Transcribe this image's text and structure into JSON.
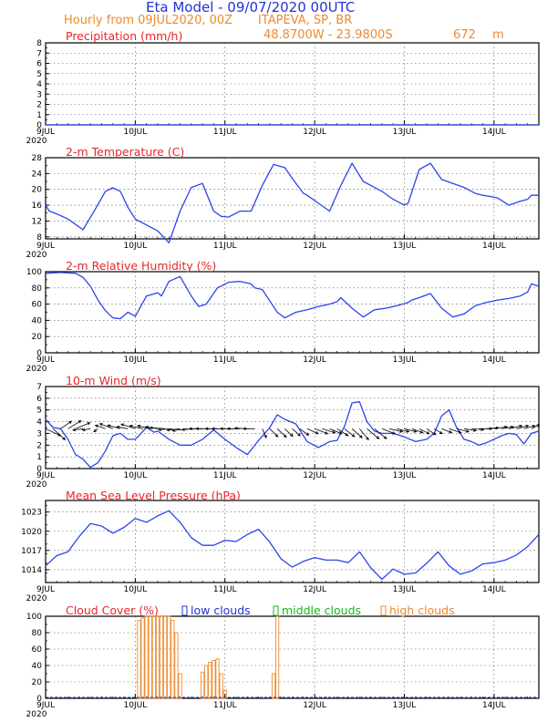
{
  "header": {
    "title": "Eta Model - 09/07/2020 00UTC",
    "subtitle": "Hourly from 09JUL2020, 00Z",
    "station": "ITAPEVA, SP, BR",
    "coords": "48.8700W - 23.9800S",
    "elevation": "672",
    "elevation_unit": "m"
  },
  "x_axis": {
    "days": [
      "9JUL",
      "10JUL",
      "11JUL",
      "12JUL",
      "13JUL",
      "14JUL"
    ],
    "year": "2020",
    "range_hours": [
      0,
      132
    ]
  },
  "colors": {
    "line": "#2a44ee",
    "title": "#e8262a",
    "header_blue": "#2233d8",
    "header_orange": "#ee8a2e",
    "high_clouds": "#ee8a2e",
    "middle_clouds": "#19b619",
    "low_clouds": "#2233d8"
  },
  "chart_data": [
    {
      "id": "precip",
      "type": "line",
      "title": "Precipitation (mm/h)",
      "ylim": [
        0,
        8
      ],
      "yticks": [
        0,
        1,
        2,
        3,
        4,
        5,
        6,
        7,
        8
      ],
      "series": [
        {
          "name": "precipitation",
          "x": [
            0,
            132
          ],
          "values": [
            0,
            0
          ]
        }
      ]
    },
    {
      "id": "temp",
      "type": "line",
      "title": "2-m Temperature (C)",
      "ylim": [
        7.5,
        28
      ],
      "yticks": [
        8,
        12,
        16,
        20,
        24,
        28
      ],
      "series": [
        {
          "name": "temperature",
          "x": [
            0,
            1,
            3,
            6,
            10,
            13,
            16,
            18,
            20,
            22,
            24,
            27,
            30,
            33,
            36,
            39,
            42,
            45,
            47,
            49,
            52,
            55,
            58,
            61,
            64,
            67,
            69,
            70,
            73,
            76,
            79,
            82,
            85,
            88,
            90,
            93,
            96,
            97,
            100,
            103,
            106,
            109,
            112,
            114,
            115,
            117,
            119,
            121,
            124,
            127,
            129,
            130,
            132
          ],
          "values": [
            16,
            14.5,
            13.8,
            12.5,
            9.8,
            14.5,
            19.5,
            20.4,
            19.5,
            15.5,
            12.5,
            11,
            9.5,
            6.5,
            14.5,
            20.5,
            21.5,
            14.5,
            13.2,
            13.0,
            14.5,
            14.5,
            21,
            26.3,
            25.5,
            21.5,
            19,
            18.5,
            16.5,
            14.5,
            21,
            26.6,
            22,
            20.5,
            19.5,
            17.5,
            16,
            16.5,
            25,
            26.6,
            22.5,
            21.5,
            20.5,
            19.5,
            19,
            18.5,
            18.2,
            17.8,
            16,
            17,
            17.5,
            18.5,
            18.5
          ]
        }
      ]
    },
    {
      "id": "rh",
      "type": "line",
      "title": "2-m Relative Humidity (%)",
      "ylim": [
        0,
        100
      ],
      "yticks": [
        0,
        20,
        40,
        60,
        80,
        100
      ],
      "series": [
        {
          "name": "relative humidity",
          "x": [
            0,
            4,
            8,
            10,
            12,
            14,
            16,
            18,
            20,
            22,
            24,
            27,
            30,
            31,
            33,
            36,
            39,
            41,
            43,
            46,
            49,
            52,
            55,
            56,
            58,
            61,
            62,
            64,
            67,
            70,
            73,
            76,
            78,
            79,
            82,
            85,
            88,
            91,
            94,
            97,
            98,
            100,
            103,
            106,
            109,
            112,
            115,
            118,
            121,
            124,
            127,
            129,
            130,
            132
          ],
          "values": [
            98,
            99,
            98,
            93,
            82,
            65,
            52,
            43,
            42,
            50,
            45,
            70,
            74,
            70,
            88,
            94,
            70,
            57,
            60,
            80,
            87,
            88,
            85,
            80,
            78,
            57,
            50,
            43,
            50,
            53,
            57,
            60,
            63,
            68,
            55,
            44,
            53,
            55,
            58,
            62,
            65,
            68,
            73,
            55,
            44,
            48,
            58,
            62,
            65,
            67,
            70,
            75,
            85,
            82
          ]
        }
      ]
    },
    {
      "id": "wind",
      "type": "line",
      "title": "10-m Wind (m/s)",
      "ylim": [
        0,
        7
      ],
      "yticks": [
        0,
        1,
        2,
        3,
        4,
        5,
        6,
        7
      ],
      "series": [
        {
          "name": "wind speed",
          "x": [
            0,
            2,
            4,
            6,
            8,
            10,
            12,
            14,
            16,
            18,
            20,
            22,
            24,
            27,
            29,
            30,
            33,
            36,
            39,
            42,
            45,
            48,
            51,
            54,
            57,
            60,
            62,
            64,
            67,
            70,
            73,
            76,
            78,
            80,
            82,
            84,
            86,
            88,
            90,
            93,
            96,
            99,
            102,
            104,
            106,
            108,
            110,
            112,
            114,
            116,
            118,
            120,
            122,
            124,
            126,
            128,
            130,
            132
          ],
          "values": [
            4.2,
            3.5,
            3.4,
            2.5,
            1.2,
            0.8,
            0.1,
            0.5,
            1.5,
            2.8,
            3.0,
            2.5,
            2.5,
            3.5,
            3.1,
            3.2,
            2.5,
            2.0,
            2.0,
            2.5,
            3.3,
            2.5,
            1.8,
            1.2,
            2.4,
            3.5,
            4.6,
            4.2,
            3.8,
            2.3,
            1.8,
            2.3,
            2.4,
            3.6,
            5.6,
            5.7,
            4.0,
            3.2,
            3.0,
            3.0,
            2.7,
            2.3,
            2.5,
            3.0,
            4.5,
            5.0,
            3.5,
            2.5,
            2.3,
            2.0,
            2.2,
            2.5,
            2.8,
            3.0,
            2.9,
            2.1,
            3.0,
            3.2
          ]
        }
      ],
      "vectors": [
        {
          "h": 0,
          "u": 3.0,
          "v": -1.4
        },
        {
          "h": 2,
          "u": 2.4,
          "v": -2.2
        },
        {
          "h": 4,
          "u": 2.2,
          "v": 1.5
        },
        {
          "h": 6,
          "u": 2.6,
          "v": 1.6
        },
        {
          "h": 8,
          "u": 2.9,
          "v": 1.2
        },
        {
          "h": 10,
          "u": -2.0,
          "v": -0.3
        },
        {
          "h": 12,
          "u": -1.6,
          "v": -0.3
        },
        {
          "h": 14,
          "u": -0.8,
          "v": -0.6
        },
        {
          "h": 16,
          "u": -2.0,
          "v": 0.7
        },
        {
          "h": 18,
          "u": -2.6,
          "v": 1.0
        },
        {
          "h": 20,
          "u": -2.5,
          "v": 0.7
        },
        {
          "h": 22,
          "u": -2.2,
          "v": 0.4
        },
        {
          "h": 24,
          "u": -2.8,
          "v": 0.9
        },
        {
          "h": 26,
          "u": -2.6,
          "v": 0.6
        },
        {
          "h": 28,
          "u": -2.5,
          "v": 0.6
        },
        {
          "h": 30,
          "u": -2.4,
          "v": 0.4
        },
        {
          "h": 32,
          "u": -3.0,
          "v": 0.2
        },
        {
          "h": 34,
          "u": -2.8,
          "v": -0.2
        },
        {
          "h": 36,
          "u": -2.6,
          "v": -0.3
        },
        {
          "h": 38,
          "u": -3.0,
          "v": -0.4
        },
        {
          "h": 40,
          "u": -2.6,
          "v": -0.2
        },
        {
          "h": 42,
          "u": -2.6,
          "v": 0.0
        },
        {
          "h": 44,
          "u": -2.8,
          "v": 0.0
        },
        {
          "h": 46,
          "u": -2.4,
          "v": 0.0
        },
        {
          "h": 48,
          "u": -2.6,
          "v": 0.0
        },
        {
          "h": 50,
          "u": -2.4,
          "v": 0.0
        },
        {
          "h": 52,
          "u": -2.5,
          "v": 0.0
        },
        {
          "h": 54,
          "u": -2.5,
          "v": 0.1
        },
        {
          "h": 56,
          "u": -2.3,
          "v": 0.0
        },
        {
          "h": 58,
          "u": 0.8,
          "v": -1.8
        },
        {
          "h": 60,
          "u": 1.6,
          "v": -1.6
        },
        {
          "h": 62,
          "u": 1.8,
          "v": -1.7
        },
        {
          "h": 64,
          "u": 1.6,
          "v": -1.5
        },
        {
          "h": 66,
          "u": 1.6,
          "v": -1.4
        },
        {
          "h": 68,
          "u": 1.8,
          "v": -1.3
        },
        {
          "h": 70,
          "u": 2.2,
          "v": -1.0
        },
        {
          "h": 72,
          "u": 2.6,
          "v": -1.0
        },
        {
          "h": 74,
          "u": 2.6,
          "v": -0.8
        },
        {
          "h": 76,
          "u": 2.4,
          "v": -1.0
        },
        {
          "h": 78,
          "u": 2.2,
          "v": -1.4
        },
        {
          "h": 80,
          "u": 2.0,
          "v": -1.6
        },
        {
          "h": 82,
          "u": 2.0,
          "v": -1.8
        },
        {
          "h": 84,
          "u": 1.8,
          "v": -2.2
        },
        {
          "h": 86,
          "u": 2.4,
          "v": -2.0
        },
        {
          "h": 88,
          "u": 2.4,
          "v": -2.0
        },
        {
          "h": 90,
          "u": 2.6,
          "v": -1.0
        },
        {
          "h": 92,
          "u": 2.6,
          "v": -0.6
        },
        {
          "h": 94,
          "u": 2.4,
          "v": -0.6
        },
        {
          "h": 96,
          "u": 2.4,
          "v": -0.6
        },
        {
          "h": 98,
          "u": 2.2,
          "v": -0.8
        },
        {
          "h": 100,
          "u": 2.0,
          "v": -1.0
        },
        {
          "h": 102,
          "u": 1.8,
          "v": -1.2
        },
        {
          "h": 104,
          "u": 1.6,
          "v": -1.0
        },
        {
          "h": 106,
          "u": 2.0,
          "v": -0.8
        },
        {
          "h": 108,
          "u": 2.4,
          "v": -0.8
        },
        {
          "h": 110,
          "u": 2.4,
          "v": -0.6
        },
        {
          "h": 112,
          "u": 2.4,
          "v": -0.4
        },
        {
          "h": 114,
          "u": 2.4,
          "v": -0.2
        },
        {
          "h": 116,
          "u": 2.6,
          "v": 0.0
        },
        {
          "h": 118,
          "u": 2.4,
          "v": 0.2
        },
        {
          "h": 120,
          "u": 2.6,
          "v": 0.4
        },
        {
          "h": 122,
          "u": 2.4,
          "v": 0.4
        },
        {
          "h": 124,
          "u": 2.6,
          "v": 0.6
        },
        {
          "h": 126,
          "u": 2.4,
          "v": 0.6
        },
        {
          "h": 128,
          "u": 2.2,
          "v": 0.6
        },
        {
          "h": 130,
          "u": 1.6,
          "v": 0.8
        }
      ]
    },
    {
      "id": "mslp",
      "type": "line",
      "title": "Mean Sea Level Pressure (hPa)",
      "ylim": [
        1012,
        1024.8
      ],
      "yticks": [
        1014,
        1017,
        1020,
        1023
      ],
      "series": [
        {
          "name": "pressure",
          "x": [
            0,
            3,
            6,
            9,
            12,
            15,
            18,
            21,
            24,
            27,
            30,
            33,
            36,
            39,
            42,
            45,
            48,
            51,
            54,
            57,
            60,
            63,
            66,
            69,
            72,
            75,
            78,
            81,
            84,
            87,
            90,
            93,
            96,
            99,
            102,
            105,
            108,
            111,
            114,
            117,
            120,
            123,
            126,
            129,
            132
          ],
          "values": [
            1014.6,
            1016.2,
            1016.8,
            1019.2,
            1021.2,
            1020.8,
            1019.7,
            1020.6,
            1022.0,
            1021.4,
            1022.4,
            1023.2,
            1021.4,
            1019.0,
            1017.8,
            1017.8,
            1018.6,
            1018.4,
            1019.5,
            1020.3,
            1018.3,
            1015.7,
            1014.4,
            1015.3,
            1015.9,
            1015.5,
            1015.5,
            1015.1,
            1016.8,
            1014.3,
            1012.5,
            1014.1,
            1013.3,
            1013.5,
            1015.0,
            1016.8,
            1014.6,
            1013.3,
            1013.8,
            1014.9,
            1015.1,
            1015.5,
            1016.3,
            1017.6,
            1019.5
          ]
        }
      ]
    },
    {
      "id": "cloud",
      "type": "bar",
      "title": "Cloud Cover (%)",
      "ylim": [
        0,
        100
      ],
      "yticks": [
        0,
        20,
        40,
        60,
        80,
        100
      ],
      "legend": [
        {
          "label": "low clouds",
          "symbol": "□"
        },
        {
          "label": "middle clouds",
          "symbol": "□"
        },
        {
          "label": "high clouds",
          "symbol": "□"
        }
      ],
      "series": [
        {
          "name": "high clouds",
          "x": [
            25,
            26,
            27,
            28,
            29,
            30,
            31,
            32,
            33,
            34,
            35,
            36,
            42,
            43,
            44,
            45,
            46,
            47,
            48,
            61,
            62
          ],
          "values": [
            95,
            98,
            100,
            100,
            100,
            100,
            100,
            100,
            100,
            95,
            80,
            30,
            32,
            40,
            44,
            46,
            48,
            30,
            10,
            30,
            100
          ]
        },
        {
          "name": "middle clouds",
          "x": [],
          "values": []
        },
        {
          "name": "low clouds",
          "x": [],
          "values": []
        }
      ]
    }
  ]
}
